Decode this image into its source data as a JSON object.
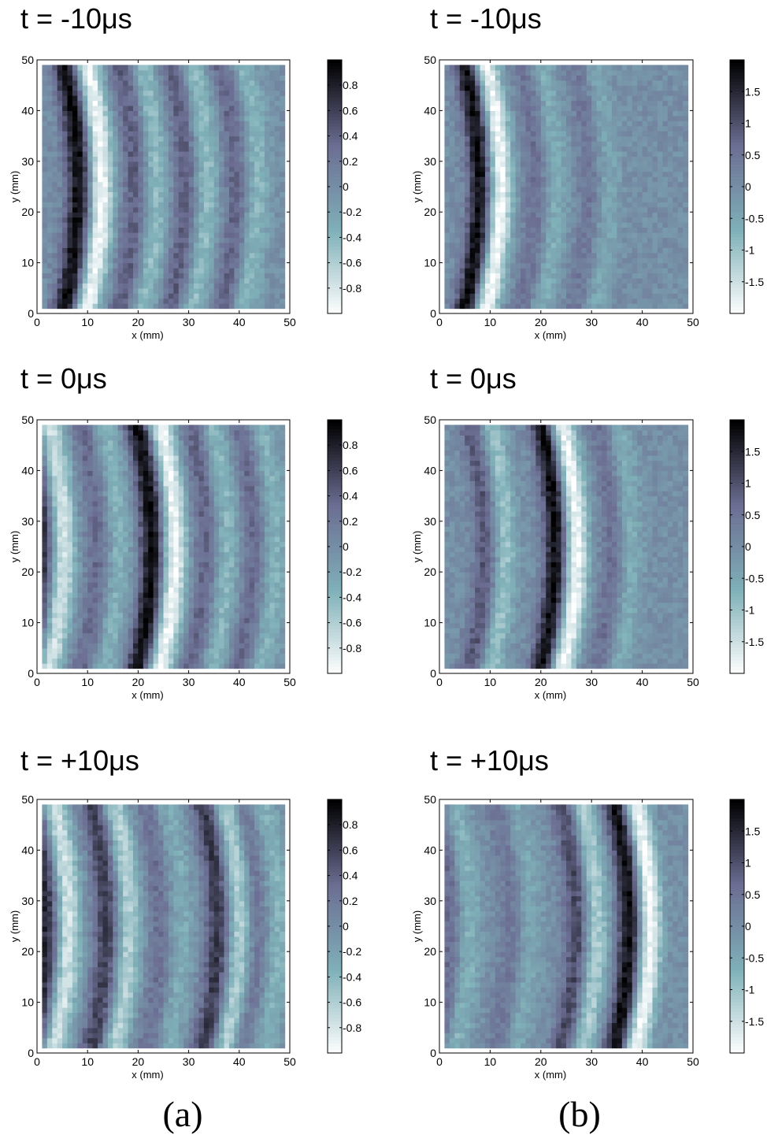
{
  "figure": {
    "column_labels": [
      "(a)",
      "(b)"
    ]
  },
  "chart_data": [
    {
      "type": "heatmap",
      "panel": "a-top",
      "title": "t = -10μs",
      "xlabel": "x (mm)",
      "ylabel": "y (mm)",
      "xlim": [
        0,
        50
      ],
      "ylim": [
        0,
        50
      ],
      "xticks": [
        "0",
        "10",
        "20",
        "30",
        "40",
        "50"
      ],
      "yticks": [
        "0",
        "10",
        "20",
        "30",
        "40",
        "50"
      ],
      "clim": [
        -1,
        1
      ],
      "colorbar_ticks": [
        "0.8",
        "0.6",
        "0.4",
        "0.2",
        "0",
        "-0.2",
        "-0.4",
        "-0.6",
        "-0.8"
      ],
      "colormap": [
        "#ffffff",
        "#7fb0b8",
        "#6c6e93",
        "#000000"
      ],
      "wavefronts": [
        {
          "x0": 10.5,
          "amp": 1.0,
          "width": 2.6
        },
        {
          "x0": 21.5,
          "amp": 0.45,
          "width": 2.6
        },
        {
          "x0": 31.5,
          "amp": 0.45,
          "width": 2.6
        },
        {
          "x0": 41.5,
          "amp": 0.4,
          "width": 2.6
        }
      ]
    },
    {
      "type": "heatmap",
      "panel": "b-top",
      "title": "t = -10μs",
      "xlabel": "x (mm)",
      "ylabel": "y (mm)",
      "xlim": [
        0,
        50
      ],
      "ylim": [
        0,
        50
      ],
      "xticks": [
        "0",
        "10",
        "20",
        "30",
        "40",
        "50"
      ],
      "yticks": [
        "0",
        "10",
        "20",
        "30",
        "40",
        "50"
      ],
      "clim": [
        -2,
        2
      ],
      "colorbar_ticks": [
        "1.5",
        "1",
        "0.5",
        "0",
        "-0.5",
        "-1",
        "-1.5"
      ],
      "colormap": [
        "#ffffff",
        "#7fb0b8",
        "#6c6e93",
        "#000000"
      ],
      "wavefronts": [
        {
          "x0": 10.0,
          "amp": 1.0,
          "width": 2.4
        },
        {
          "x0": 21.0,
          "amp": 0.3,
          "width": 2.4
        },
        {
          "x0": 31.5,
          "amp": 0.25,
          "width": 2.4
        }
      ]
    },
    {
      "type": "heatmap",
      "panel": "a-middle",
      "title": "t = 0μs",
      "xlabel": "x (mm)",
      "ylabel": "y (mm)",
      "xlim": [
        0,
        50
      ],
      "ylim": [
        0,
        50
      ],
      "xticks": [
        "0",
        "10",
        "20",
        "30",
        "40",
        "50"
      ],
      "yticks": [
        "0",
        "10",
        "20",
        "30",
        "40",
        "50"
      ],
      "clim": [
        -1,
        1
      ],
      "colorbar_ticks": [
        "0.8",
        "0.6",
        "0.4",
        "0.2",
        "0",
        "-0.2",
        "-0.4",
        "-0.6",
        "-0.8"
      ],
      "colormap": [
        "#ffffff",
        "#7fb0b8",
        "#6c6e93",
        "#000000"
      ],
      "wavefronts": [
        {
          "x0": 3.0,
          "amp": 0.8,
          "width": 2.6
        },
        {
          "x0": 25.0,
          "amp": 1.0,
          "width": 2.6
        },
        {
          "x0": 14.0,
          "amp": 0.35,
          "width": 2.6
        },
        {
          "x0": 35.5,
          "amp": 0.4,
          "width": 2.6
        },
        {
          "x0": 45.0,
          "amp": 0.35,
          "width": 2.6
        }
      ]
    },
    {
      "type": "heatmap",
      "panel": "b-middle",
      "title": "t = 0μs",
      "xlabel": "x (mm)",
      "ylabel": "y (mm)",
      "xlim": [
        0,
        50
      ],
      "ylim": [
        0,
        50
      ],
      "xticks": [
        "0",
        "10",
        "20",
        "30",
        "40",
        "50"
      ],
      "yticks": [
        "0",
        "10",
        "20",
        "30",
        "40",
        "50"
      ],
      "clim": [
        -2,
        2
      ],
      "colorbar_ticks": [
        "1.5",
        "1",
        "0.5",
        "0",
        "-0.5",
        "-1",
        "-1.5"
      ],
      "colormap": [
        "#ffffff",
        "#7fb0b8",
        "#6c6e93",
        "#000000"
      ],
      "wavefronts": [
        {
          "x0": 11.0,
          "amp": 0.5,
          "width": 2.4
        },
        {
          "x0": 25.0,
          "amp": 1.0,
          "width": 2.4
        },
        {
          "x0": 36.0,
          "amp": 0.3,
          "width": 2.4
        }
      ]
    },
    {
      "type": "heatmap",
      "panel": "a-bottom",
      "title": "t = +10μs",
      "xlabel": "x (mm)",
      "ylabel": "y (mm)",
      "xlim": [
        0,
        50
      ],
      "ylim": [
        0,
        50
      ],
      "xticks": [
        "0",
        "10",
        "20",
        "30",
        "40",
        "50"
      ],
      "yticks": [
        "0",
        "10",
        "20",
        "30",
        "40",
        "50"
      ],
      "clim": [
        -1,
        1
      ],
      "colorbar_ticks": [
        "0.8",
        "0.6",
        "0.4",
        "0.2",
        "0",
        "-0.2",
        "-0.4",
        "-0.6",
        "-0.8"
      ],
      "colormap": [
        "#ffffff",
        "#7fb0b8",
        "#6c6e93",
        "#000000"
      ],
      "wavefronts": [
        {
          "x0": 4.0,
          "amp": 0.8,
          "width": 2.6
        },
        {
          "x0": 16.0,
          "amp": 0.65,
          "width": 2.6
        },
        {
          "x0": 26.5,
          "amp": 0.3,
          "width": 2.6
        },
        {
          "x0": 38.0,
          "amp": 0.7,
          "width": 2.6
        },
        {
          "x0": 45.5,
          "amp": 0.35,
          "width": 2.6
        }
      ]
    },
    {
      "type": "heatmap",
      "panel": "b-bottom",
      "title": "t = +10μs",
      "xlabel": "x (mm)",
      "ylabel": "y (mm)",
      "xlim": [
        0,
        50
      ],
      "ylim": [
        0,
        50
      ],
      "xticks": [
        "0",
        "10",
        "20",
        "30",
        "40",
        "50"
      ],
      "yticks": [
        "0",
        "10",
        "20",
        "30",
        "40",
        "50"
      ],
      "clim": [
        -2,
        2
      ],
      "colorbar_ticks": [
        "1.5",
        "1",
        "0.5",
        "0",
        "-0.5",
        "-1",
        "-1.5"
      ],
      "colormap": [
        "#ffffff",
        "#7fb0b8",
        "#6c6e93",
        "#000000"
      ],
      "wavefronts": [
        {
          "x0": 4.0,
          "amp": 0.35,
          "width": 2.4
        },
        {
          "x0": 29.0,
          "amp": 0.6,
          "width": 2.4
        },
        {
          "x0": 39.5,
          "amp": 1.0,
          "width": 2.4
        },
        {
          "x0": 16.0,
          "amp": 0.25,
          "width": 2.4
        }
      ]
    }
  ]
}
